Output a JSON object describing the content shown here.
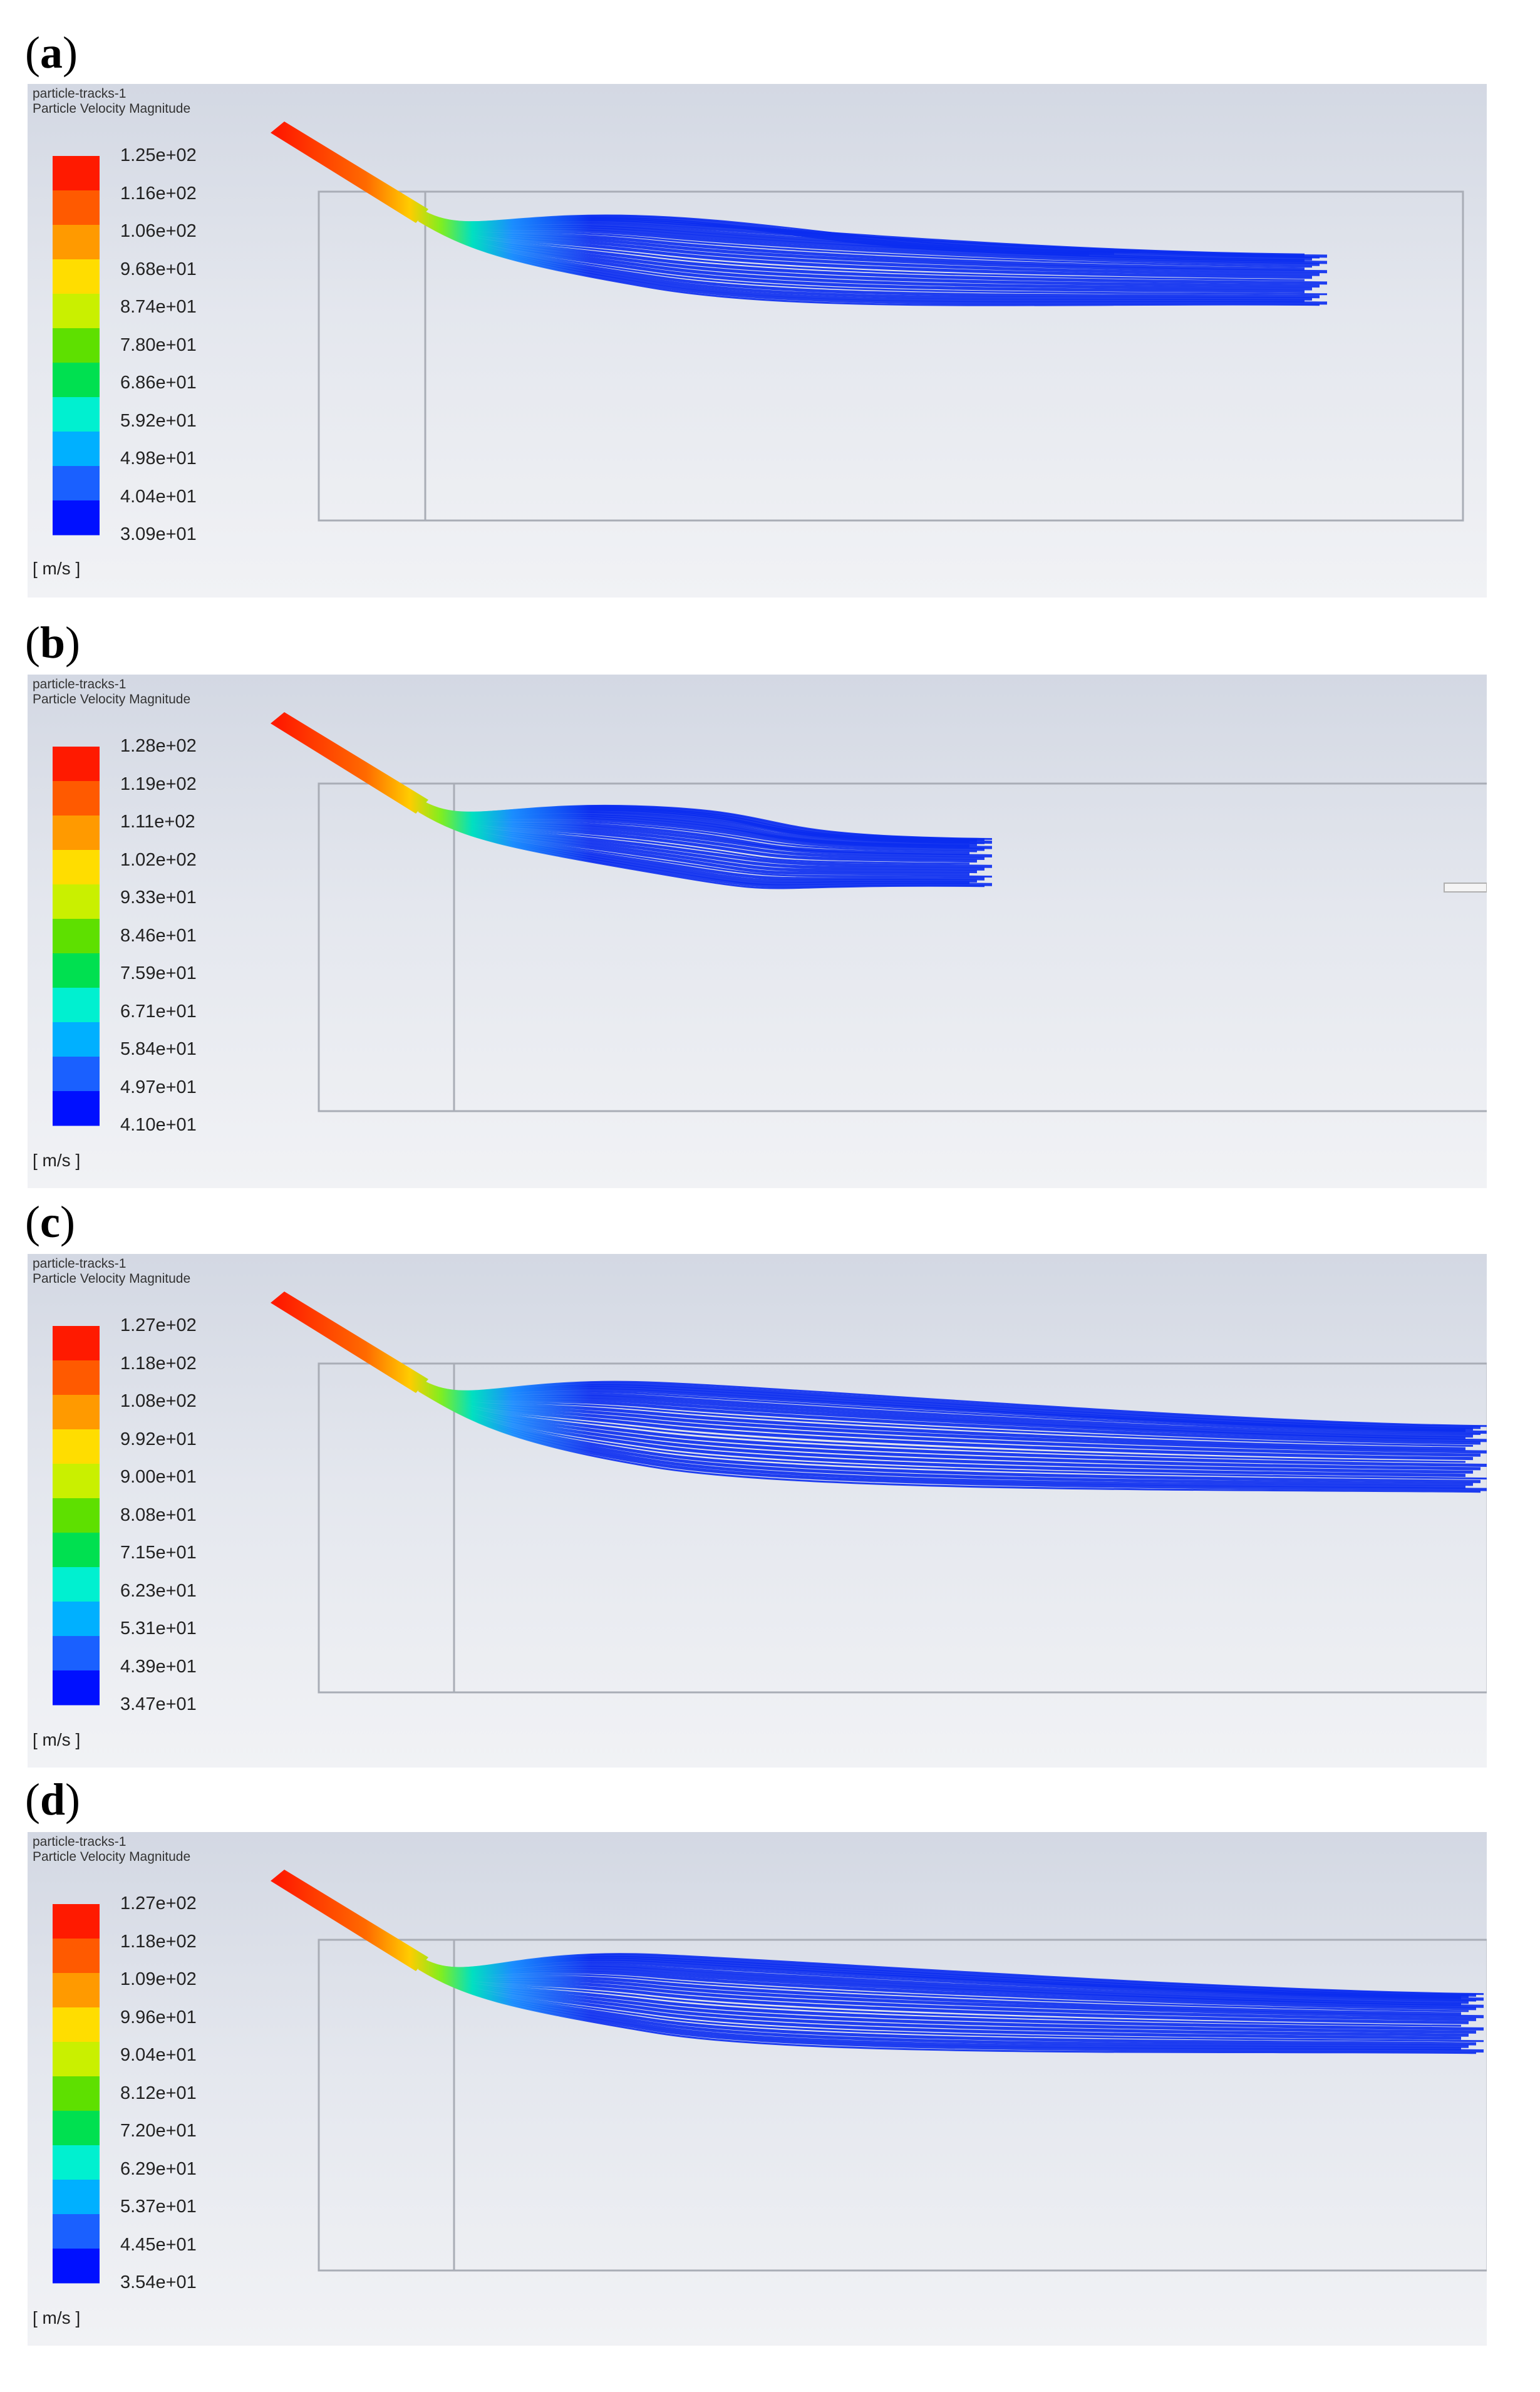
{
  "panels": [
    {
      "label": "a",
      "title_line1": "particle-tracks-1",
      "title_line2": "Particle Velocity Magnitude",
      "units": "[ m/s ]",
      "ticks": [
        "1.25e+02",
        "1.16e+02",
        "1.06e+02",
        "9.68e+01",
        "8.74e+01",
        "7.80e+01",
        "6.86e+01",
        "5.92e+01",
        "4.98e+01",
        "4.04e+01",
        "3.09e+01"
      ]
    },
    {
      "label": "b",
      "title_line1": "particle-tracks-1",
      "title_line2": "Particle Velocity Magnitude",
      "units": "[ m/s ]",
      "ticks": [
        "1.28e+02",
        "1.19e+02",
        "1.11e+02",
        "1.02e+02",
        "9.33e+01",
        "8.46e+01",
        "7.59e+01",
        "6.71e+01",
        "5.84e+01",
        "4.97e+01",
        "4.10e+01"
      ]
    },
    {
      "label": "c",
      "title_line1": "particle-tracks-1",
      "title_line2": "Particle Velocity Magnitude",
      "units": "[ m/s ]",
      "ticks": [
        "1.27e+02",
        "1.18e+02",
        "1.08e+02",
        "9.92e+01",
        "9.00e+01",
        "8.08e+01",
        "7.15e+01",
        "6.23e+01",
        "5.31e+01",
        "4.39e+01",
        "3.47e+01"
      ]
    },
    {
      "label": "d",
      "title_line1": "particle-tracks-1",
      "title_line2": "Particle Velocity Magnitude",
      "units": "[ m/s ]",
      "ticks": [
        "1.27e+02",
        "1.18e+02",
        "1.09e+02",
        "9.96e+01",
        "9.04e+01",
        "8.12e+01",
        "7.20e+01",
        "6.29e+01",
        "5.37e+01",
        "4.45e+01",
        "3.54e+01"
      ]
    }
  ],
  "colormap": [
    "#ff1a00",
    "#ff5a00",
    "#ff9a00",
    "#ffdd00",
    "#c9f000",
    "#5ee000",
    "#00e050",
    "#00f0d0",
    "#00b0ff",
    "#1a60ff",
    "#0010ff"
  ]
}
